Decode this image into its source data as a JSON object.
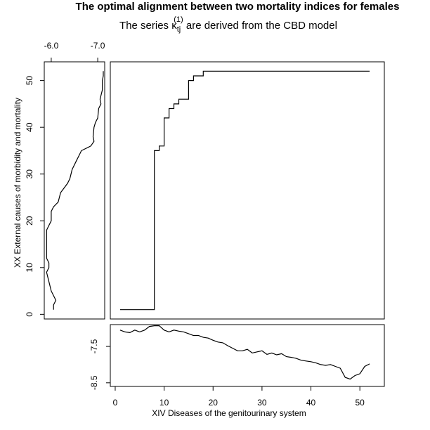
{
  "chart_data": {
    "type": "line",
    "title": "The optimal alignment between two mortality indices for females",
    "subtitle": {
      "prefix": "The series ",
      "symbol": "κ",
      "symbol_sub": "tj",
      "symbol_sup": "(1)",
      "suffix": " are derived from the CBD model"
    },
    "xlabel": "XIV Diseases of the genitourinary system",
    "ylabel": "XX External causes of morbidity and mortality",
    "main": {
      "type": "step-line",
      "xlim": [
        -1,
        55
      ],
      "ylim": [
        -1,
        54
      ],
      "x_ticks": [
        0,
        10,
        20,
        30,
        40,
        50
      ],
      "y_ticks": [
        0,
        10,
        20,
        30,
        40,
        50
      ],
      "points": [
        [
          1,
          1
        ],
        [
          8,
          1
        ],
        [
          8,
          35
        ],
        [
          9,
          35
        ],
        [
          9,
          36
        ],
        [
          10,
          36
        ],
        [
          10,
          42
        ],
        [
          11,
          42
        ],
        [
          11,
          44
        ],
        [
          12,
          44
        ],
        [
          12,
          45
        ],
        [
          13,
          45
        ],
        [
          13,
          46
        ],
        [
          15,
          46
        ],
        [
          15,
          50
        ],
        [
          16,
          50
        ],
        [
          16,
          51
        ],
        [
          18,
          51
        ],
        [
          18,
          52
        ],
        [
          52,
          52
        ]
      ]
    },
    "left": {
      "type": "line",
      "orientation": "vertical",
      "xlim": [
        -5.85,
        -7.15
      ],
      "ticks": [
        -6.0,
        -7.0
      ],
      "tick_labels": [
        "-6.0",
        "-7.0"
      ],
      "points": [
        [
          -6.05,
          1
        ],
        [
          -6.05,
          2
        ],
        [
          -6.1,
          3
        ],
        [
          -6.0,
          5
        ],
        [
          -5.95,
          7
        ],
        [
          -5.9,
          9
        ],
        [
          -5.95,
          10
        ],
        [
          -5.95,
          11
        ],
        [
          -5.9,
          12
        ],
        [
          -5.9,
          14
        ],
        [
          -5.9,
          17
        ],
        [
          -5.9,
          18
        ],
        [
          -5.95,
          19
        ],
        [
          -6.0,
          20
        ],
        [
          -6.0,
          22
        ],
        [
          -6.05,
          23
        ],
        [
          -6.15,
          24
        ],
        [
          -6.2,
          26
        ],
        [
          -6.35,
          28
        ],
        [
          -6.4,
          29
        ],
        [
          -6.45,
          31
        ],
        [
          -6.55,
          33
        ],
        [
          -6.6,
          34
        ],
        [
          -6.65,
          35
        ],
        [
          -6.85,
          36
        ],
        [
          -6.92,
          37
        ],
        [
          -6.9,
          38
        ],
        [
          -6.92,
          40
        ],
        [
          -6.95,
          41
        ],
        [
          -7.0,
          42
        ],
        [
          -7.02,
          44
        ],
        [
          -7.07,
          45
        ],
        [
          -7.05,
          46
        ],
        [
          -7.1,
          48
        ],
        [
          -7.1,
          50
        ],
        [
          -7.12,
          51
        ],
        [
          -7.12,
          52
        ]
      ]
    },
    "bottom": {
      "type": "line",
      "ylim": [
        -8.6,
        -6.9
      ],
      "ticks": [
        -7.5,
        -8.5
      ],
      "tick_labels": [
        "-7.5",
        "-8.5"
      ],
      "points": [
        [
          1,
          -7.05
        ],
        [
          2,
          -7.1
        ],
        [
          3,
          -7.12
        ],
        [
          4,
          -7.05
        ],
        [
          5,
          -7.1
        ],
        [
          6,
          -7.05
        ],
        [
          7,
          -6.95
        ],
        [
          8,
          -6.93
        ],
        [
          9,
          -6.93
        ],
        [
          10,
          -7.05
        ],
        [
          11,
          -7.1
        ],
        [
          12,
          -7.05
        ],
        [
          13,
          -7.08
        ],
        [
          14,
          -7.1
        ],
        [
          15,
          -7.15
        ],
        [
          16,
          -7.2
        ],
        [
          17,
          -7.2
        ],
        [
          18,
          -7.25
        ],
        [
          19,
          -7.27
        ],
        [
          20,
          -7.33
        ],
        [
          21,
          -7.38
        ],
        [
          22,
          -7.4
        ],
        [
          23,
          -7.48
        ],
        [
          24,
          -7.55
        ],
        [
          25,
          -7.62
        ],
        [
          26,
          -7.62
        ],
        [
          27,
          -7.58
        ],
        [
          28,
          -7.68
        ],
        [
          29,
          -7.65
        ],
        [
          30,
          -7.62
        ],
        [
          31,
          -7.72
        ],
        [
          32,
          -7.68
        ],
        [
          33,
          -7.73
        ],
        [
          34,
          -7.7
        ],
        [
          35,
          -7.78
        ],
        [
          36,
          -7.8
        ],
        [
          37,
          -7.83
        ],
        [
          38,
          -7.88
        ],
        [
          39,
          -7.9
        ],
        [
          40,
          -7.92
        ],
        [
          41,
          -7.95
        ],
        [
          42,
          -8.0
        ],
        [
          43,
          -8.02
        ],
        [
          44,
          -8.0
        ],
        [
          45,
          -8.05
        ],
        [
          46,
          -8.1
        ],
        [
          47,
          -8.35
        ],
        [
          48,
          -8.4
        ],
        [
          49,
          -8.3
        ],
        [
          50,
          -8.25
        ],
        [
          51,
          -8.05
        ],
        [
          52,
          -7.98
        ]
      ]
    }
  }
}
